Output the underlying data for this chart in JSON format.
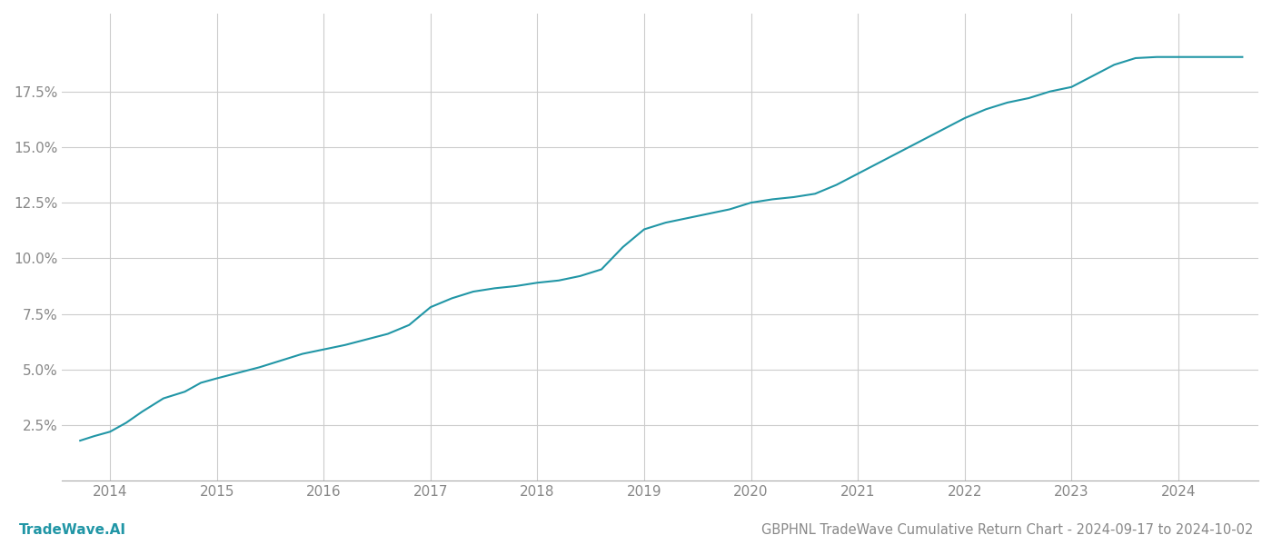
{
  "title": "GBPHNL TradeWave Cumulative Return Chart - 2024-09-17 to 2024-10-02",
  "watermark": "TradeWave.AI",
  "line_color": "#2196a6",
  "background_color": "#ffffff",
  "grid_color": "#cccccc",
  "x_years": [
    2014,
    2015,
    2016,
    2017,
    2018,
    2019,
    2020,
    2021,
    2022,
    2023,
    2024
  ],
  "data_x": [
    2013.72,
    2013.85,
    2014.0,
    2014.15,
    2014.3,
    2014.5,
    2014.7,
    2014.85,
    2015.0,
    2015.2,
    2015.4,
    2015.6,
    2015.8,
    2016.0,
    2016.2,
    2016.4,
    2016.6,
    2016.8,
    2017.0,
    2017.2,
    2017.4,
    2017.6,
    2017.8,
    2018.0,
    2018.2,
    2018.4,
    2018.6,
    2018.8,
    2019.0,
    2019.2,
    2019.4,
    2019.6,
    2019.8,
    2020.0,
    2020.2,
    2020.4,
    2020.6,
    2020.8,
    2021.0,
    2021.2,
    2021.4,
    2021.6,
    2021.8,
    2022.0,
    2022.2,
    2022.4,
    2022.6,
    2022.8,
    2023.0,
    2023.2,
    2023.4,
    2023.6,
    2023.8,
    2024.0,
    2024.3,
    2024.6
  ],
  "data_y": [
    1.8,
    2.0,
    2.2,
    2.6,
    3.1,
    3.7,
    4.0,
    4.4,
    4.6,
    4.85,
    5.1,
    5.4,
    5.7,
    5.9,
    6.1,
    6.35,
    6.6,
    7.0,
    7.8,
    8.2,
    8.5,
    8.65,
    8.75,
    8.9,
    9.0,
    9.2,
    9.5,
    10.5,
    11.3,
    11.6,
    11.8,
    12.0,
    12.2,
    12.5,
    12.65,
    12.75,
    12.9,
    13.3,
    13.8,
    14.3,
    14.8,
    15.3,
    15.8,
    16.3,
    16.7,
    17.0,
    17.2,
    17.5,
    17.7,
    18.2,
    18.7,
    19.0,
    19.05,
    19.05,
    19.05,
    19.05
  ],
  "ylim": [
    0,
    21
  ],
  "xlim": [
    2013.55,
    2024.75
  ],
  "yticks": [
    2.5,
    5.0,
    7.5,
    10.0,
    12.5,
    15.0,
    17.5
  ],
  "title_fontsize": 10.5,
  "watermark_fontsize": 11,
  "tick_fontsize": 11,
  "line_width": 1.5
}
